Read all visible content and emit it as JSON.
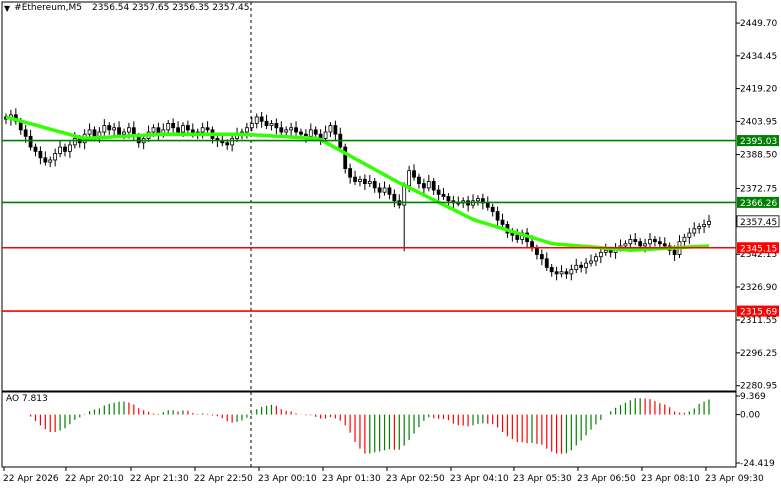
{
  "header": {
    "arrow_icon": "triangle-down-icon",
    "symbol": "#Ethereum,M5",
    "ohlc": "2356.54 2357.65 2356.35 2357.45"
  },
  "price_axis": {
    "ticks": [
      "2449.70",
      "2434.45",
      "2419.20",
      "2403.95",
      "2388.50",
      "2372.75",
      "2357.45",
      "2342.15",
      "2326.90",
      "2311.55",
      "2296.25",
      "2280.95"
    ],
    "ymin": 2278.5,
    "ymax": 2459.5
  },
  "levels": [
    {
      "value": 2395.03,
      "label": "2395.03",
      "color": "#008000"
    },
    {
      "value": 2366.26,
      "label": "2366.26",
      "color": "#008000"
    },
    {
      "value": 2345.15,
      "label": "2345.15",
      "color": "#ff0000"
    },
    {
      "value": 2315.69,
      "label": "2315.69",
      "color": "#ff0000"
    }
  ],
  "current_price": {
    "value": 2357.45,
    "label": "2357.45"
  },
  "ao": {
    "title": "AO 7.813",
    "ticks": [
      "9.369",
      "0.00",
      "-24.419"
    ],
    "max": 9.369,
    "min": -24.419
  },
  "time_axis": [
    "22 Apr 2026",
    "22 Apr 20:10",
    "22 Apr 21:30",
    "22 Apr 22:50",
    "23 Apr 00:10",
    "23 Apr 01:30",
    "23 Apr 02:50",
    "23 Apr 04:10",
    "23 Apr 05:30",
    "23 Apr 06:50",
    "23 Apr 08:10",
    "23 Apr 09:30"
  ],
  "colors": {
    "ma": "#32ff00",
    "bull": "#000000",
    "ao_up": "#008000",
    "ao_down": "#ff0000",
    "grid": "#000000"
  },
  "chart_data": {
    "type": "candlestick",
    "title": "#Ethereum,M5",
    "closes": [
      2405,
      2407,
      2404,
      2400,
      2397,
      2392,
      2390,
      2387,
      2385,
      2386,
      2389,
      2392,
      2390,
      2393,
      2396,
      2394,
      2398,
      2400,
      2397,
      2399,
      2402,
      2400,
      2401,
      2398,
      2399,
      2401,
      2397,
      2394,
      2396,
      2399,
      2401,
      2398,
      2400,
      2403,
      2401,
      2399,
      2402,
      2400,
      2398,
      2399,
      2401,
      2400,
      2396,
      2395,
      2394,
      2393,
      2396,
      2398,
      2399,
      2401,
      2403,
      2406,
      2404,
      2402,
      2403,
      2401,
      2399,
      2400,
      2401,
      2399,
      2398,
      2397,
      2400,
      2398,
      2396,
      2399,
      2402,
      2398,
      2392,
      2382,
      2378,
      2376,
      2377,
      2375,
      2376,
      2373,
      2371,
      2373,
      2370,
      2367,
      2365,
      2374,
      2381,
      2378,
      2375,
      2373,
      2376,
      2372,
      2370,
      2369,
      2367,
      2366,
      2366,
      2367,
      2365,
      2367,
      2368,
      2366,
      2364,
      2362,
      2358,
      2356,
      2352,
      2351,
      2349,
      2352,
      2348,
      2345,
      2342,
      2340,
      2336,
      2334,
      2333,
      2334,
      2333,
      2335,
      2337,
      2336,
      2338,
      2339,
      2341,
      2343,
      2344,
      2343,
      2345,
      2346,
      2347,
      2349,
      2348,
      2346,
      2347,
      2349,
      2348,
      2347,
      2346,
      2344,
      2342,
      2348,
      2350,
      2352,
      2354,
      2355,
      2356,
      2357.45
    ],
    "ma_levels": [
      2406,
      2396,
      2398,
      2398,
      2396,
      2376,
      2358,
      2347,
      2344,
      2346
    ]
  }
}
